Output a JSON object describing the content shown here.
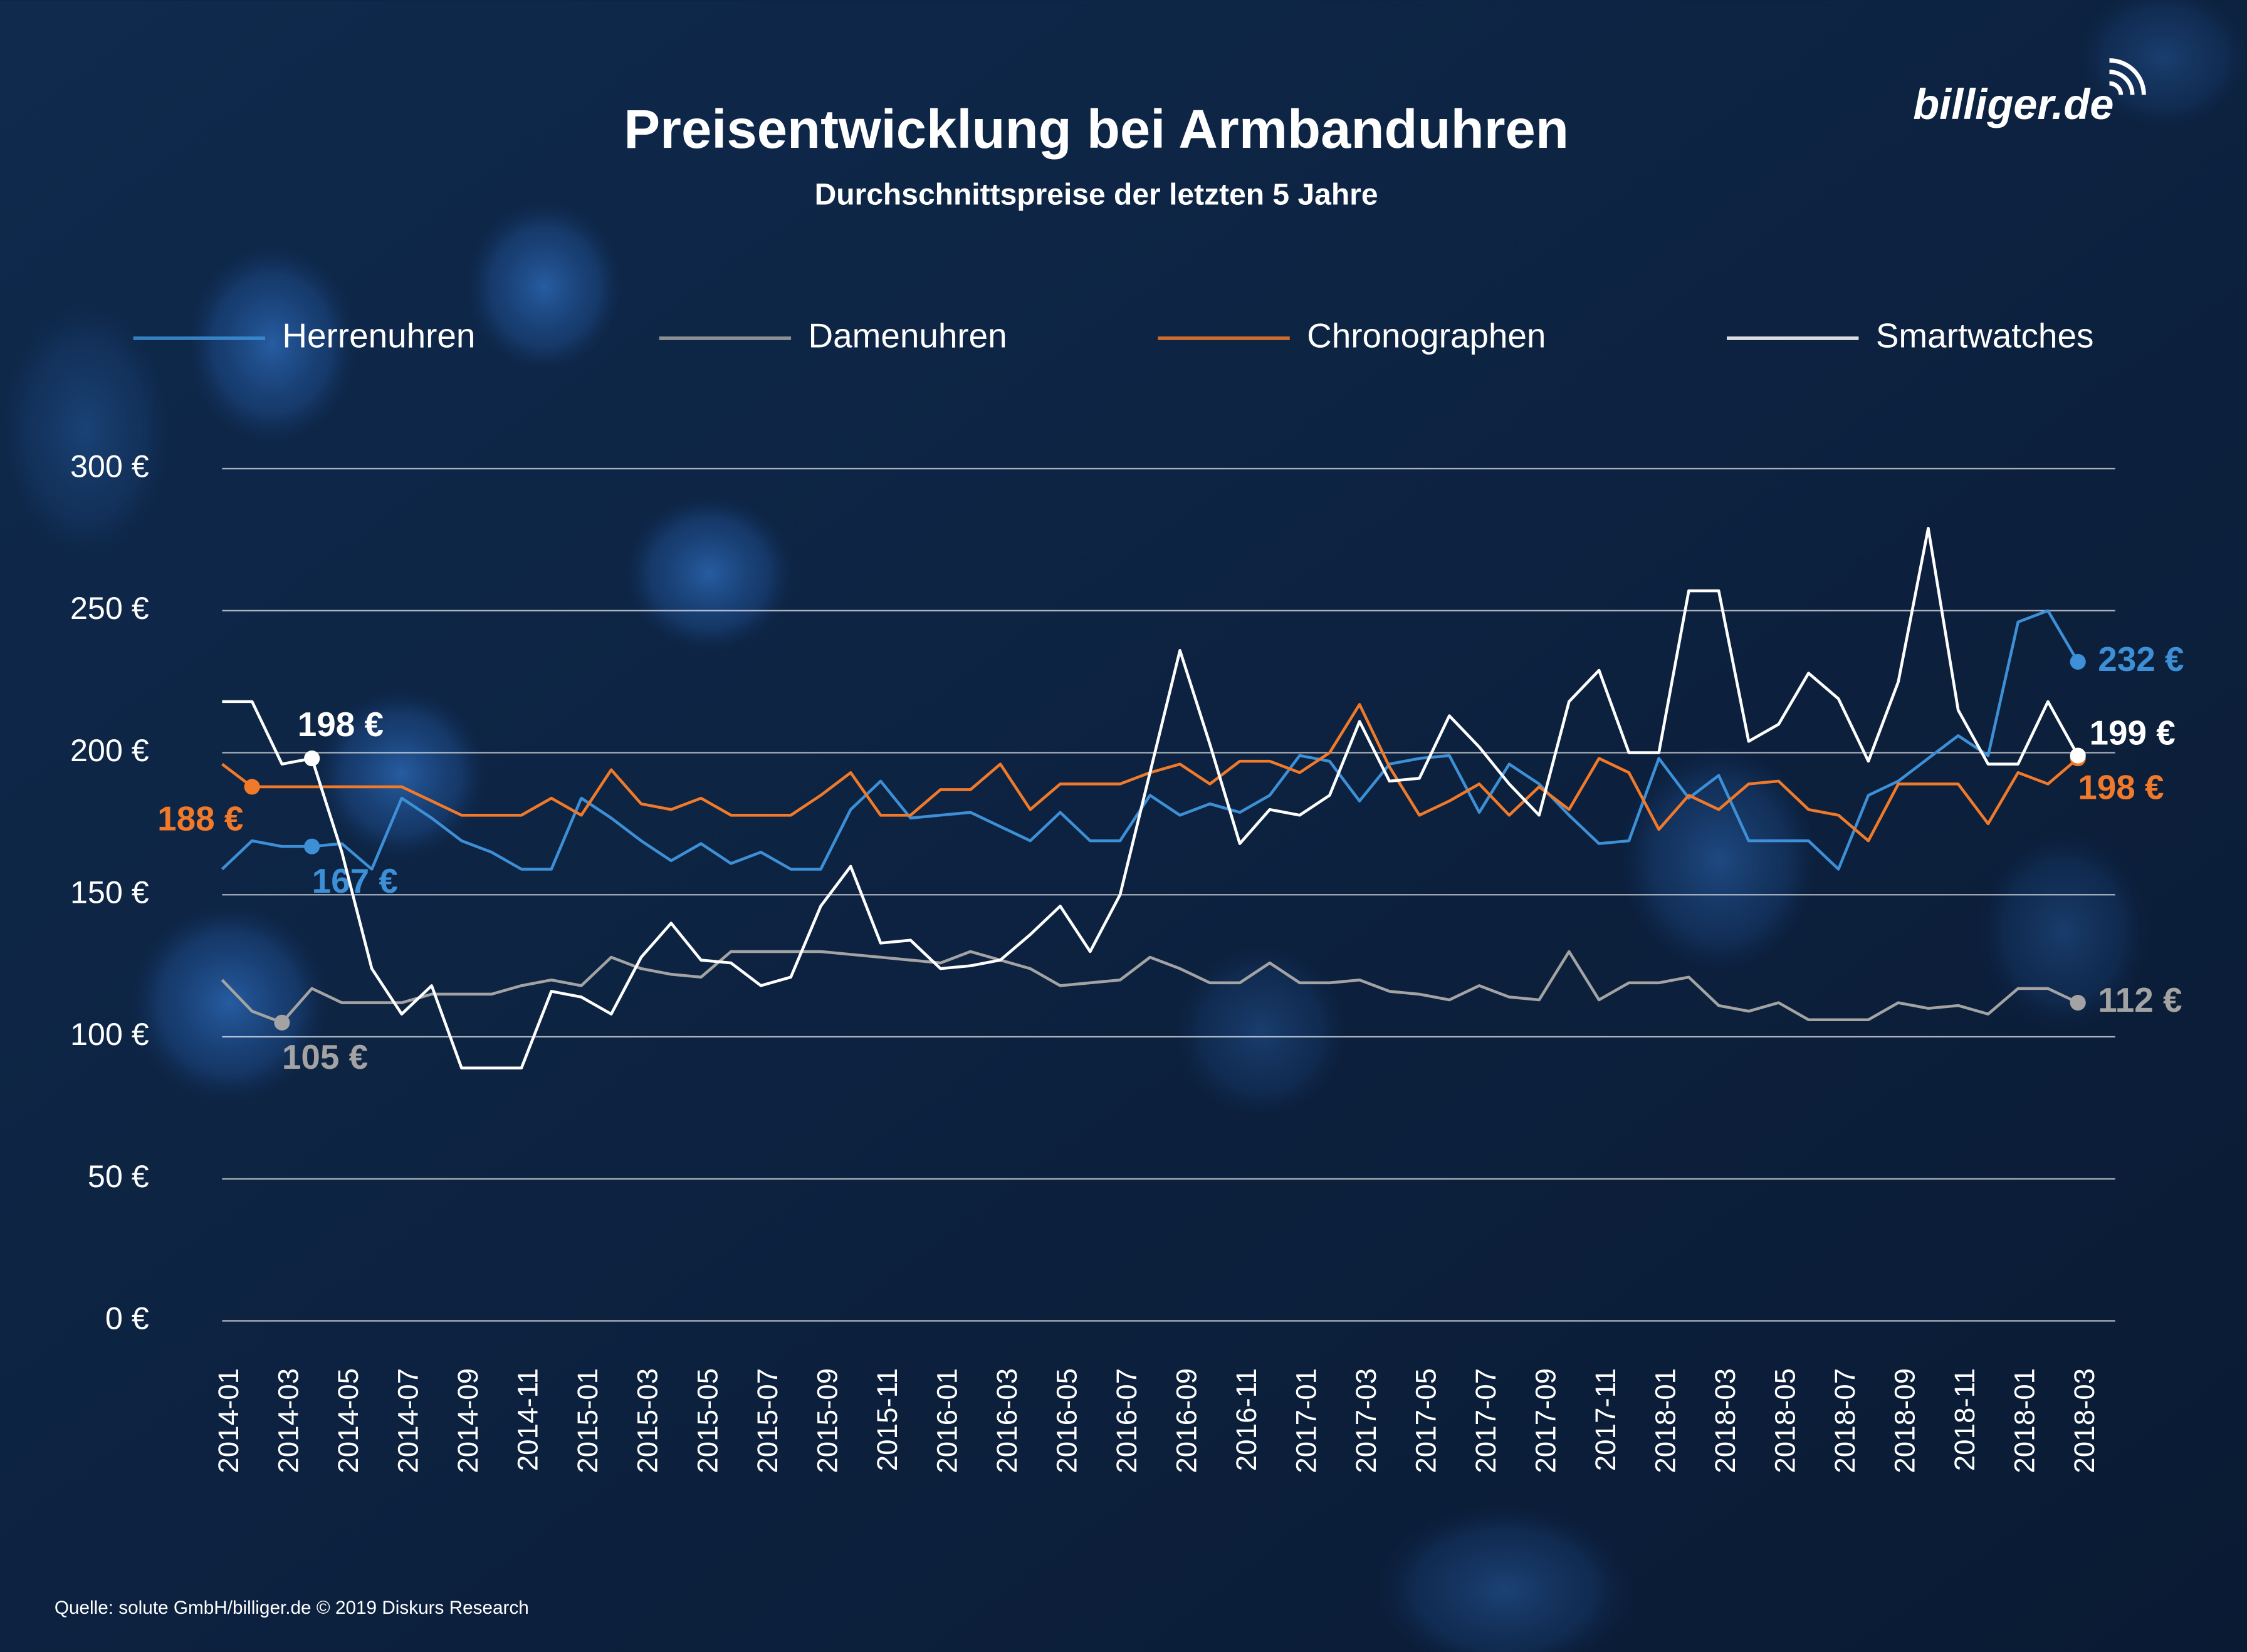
{
  "chart_data": {
    "type": "line",
    "title": "Preisentwicklung bei Armbanduhren",
    "subtitle": "Durchschnittspreise der letzten 5 Jahre",
    "source": "Quelle: solute GmbH/billiger.de © 2019 Diskurs Research",
    "logo": "billiger.de",
    "categories": [
      "2014-01",
      null,
      "2014-03",
      null,
      "2014-05",
      null,
      "2014-07",
      null,
      "2014-09",
      null,
      "2014-11",
      null,
      "2015-01",
      null,
      "2015-03",
      null,
      "2015-05",
      null,
      "2015-07",
      null,
      "2015-09",
      null,
      "2015-11",
      null,
      "2016-01",
      null,
      "2016-03",
      null,
      "2016-05",
      null,
      "2016-07",
      null,
      "2016-09",
      null,
      "2016-11",
      null,
      "2017-01",
      null,
      "2017-03",
      null,
      "2017-05",
      null,
      "2017-07",
      null,
      "2017-09",
      null,
      "2017-11",
      null,
      "2018-01",
      null,
      "2018-03",
      null,
      "2018-05",
      null,
      "2018-07",
      null,
      "2018-09",
      null,
      "2018-11",
      null,
      "2018-01",
      null,
      "2018-03"
    ],
    "ylim": [
      0,
      300
    ],
    "yticks": [
      {
        "value": 0,
        "label": "0 €"
      },
      {
        "value": 50,
        "label": "50 €"
      },
      {
        "value": 100,
        "label": "100 €"
      },
      {
        "value": 150,
        "label": "150 €"
      },
      {
        "value": 200,
        "label": "200 €"
      },
      {
        "value": 250,
        "label": "250 €"
      },
      {
        "value": 300,
        "label": "300 €"
      }
    ],
    "grid": true,
    "legend": "top",
    "series": [
      {
        "name": "Herrenuhren",
        "color": "#3d8fd6",
        "values": [
          159,
          169,
          167,
          167,
          168,
          159,
          184,
          177,
          169,
          165,
          159,
          159,
          184,
          177,
          169,
          162,
          168,
          161,
          165,
          159,
          159,
          180,
          190,
          177,
          178,
          179,
          174,
          169,
          179,
          169,
          169,
          185,
          178,
          182,
          179,
          185,
          199,
          197,
          183,
          196,
          198,
          199,
          179,
          196,
          189,
          178,
          168,
          169,
          198,
          184,
          192,
          169,
          169,
          169,
          159,
          185,
          190,
          198,
          206,
          199,
          246,
          250,
          232
        ],
        "value_labels": [
          null,
          null,
          null,
          "167 €",
          null,
          null,
          null,
          null,
          null,
          null,
          null,
          null,
          null,
          null,
          null,
          null,
          null,
          null,
          null,
          null,
          null,
          null,
          null,
          null,
          null,
          null,
          null,
          null,
          null,
          null,
          null,
          null,
          null,
          null,
          null,
          null,
          null,
          null,
          null,
          null,
          null,
          null,
          null,
          null,
          null,
          null,
          null,
          null,
          null,
          null,
          null,
          null,
          null,
          null,
          null,
          null,
          null,
          null,
          null,
          null,
          null,
          null,
          "232 €"
        ]
      },
      {
        "name": "Damenuhren",
        "color": "#a3a3a3",
        "values": [
          120,
          109,
          105,
          117,
          112,
          112,
          112,
          115,
          115,
          115,
          118,
          120,
          118,
          128,
          124,
          122,
          121,
          130,
          130,
          130,
          130,
          129,
          128,
          127,
          126,
          130,
          127,
          124,
          118,
          119,
          120,
          128,
          124,
          119,
          119,
          126,
          119,
          119,
          120,
          116,
          115,
          113,
          118,
          114,
          113,
          130,
          113,
          119,
          119,
          121,
          111,
          109,
          112,
          106,
          106,
          106,
          112,
          110,
          111,
          108,
          117,
          117,
          112
        ],
        "value_labels": [
          null,
          null,
          "105 €",
          null,
          null,
          null,
          null,
          null,
          null,
          null,
          null,
          null,
          null,
          null,
          null,
          null,
          null,
          null,
          null,
          null,
          null,
          null,
          null,
          null,
          null,
          null,
          null,
          null,
          null,
          null,
          null,
          null,
          null,
          null,
          null,
          null,
          null,
          null,
          null,
          null,
          null,
          null,
          null,
          null,
          null,
          null,
          null,
          null,
          null,
          null,
          null,
          null,
          null,
          null,
          null,
          null,
          null,
          null,
          null,
          null,
          null,
          null,
          "112 €"
        ]
      },
      {
        "name": "Chronographen",
        "color": "#f07a2a",
        "values": [
          196,
          188,
          188,
          188,
          188,
          188,
          188,
          183,
          178,
          178,
          178,
          184,
          178,
          194,
          182,
          180,
          184,
          178,
          178,
          178,
          185,
          193,
          178,
          178,
          187,
          187,
          196,
          180,
          189,
          189,
          189,
          193,
          196,
          189,
          197,
          197,
          193,
          200,
          217,
          195,
          178,
          183,
          189,
          178,
          188,
          180,
          198,
          193,
          173,
          185,
          180,
          189,
          190,
          180,
          178,
          169,
          189,
          189,
          189,
          175,
          193,
          189,
          198
        ],
        "value_labels": [
          null,
          "188 €",
          null,
          null,
          null,
          null,
          null,
          null,
          null,
          null,
          null,
          null,
          null,
          null,
          null,
          null,
          null,
          null,
          null,
          null,
          null,
          null,
          null,
          null,
          null,
          null,
          null,
          null,
          null,
          null,
          null,
          null,
          null,
          null,
          null,
          null,
          null,
          null,
          null,
          null,
          null,
          null,
          null,
          null,
          null,
          null,
          null,
          null,
          null,
          null,
          null,
          null,
          null,
          null,
          null,
          null,
          null,
          null,
          null,
          null,
          null,
          null,
          "198 €"
        ]
      },
      {
        "name": "Smartwatches",
        "color": "#ffffff",
        "values": [
          218,
          218,
          196,
          198,
          165,
          124,
          108,
          118,
          89,
          89,
          89,
          116,
          114,
          108,
          128,
          140,
          127,
          126,
          118,
          121,
          146,
          160,
          133,
          134,
          124,
          125,
          127,
          136,
          146,
          130,
          150,
          193,
          236,
          203,
          168,
          180,
          178,
          185,
          211,
          190,
          191,
          213,
          202,
          189,
          178,
          218,
          229,
          200,
          200,
          257,
          257,
          204,
          210,
          228,
          219,
          197,
          225,
          279,
          215,
          196,
          196,
          218,
          199
        ],
        "value_labels": [
          null,
          null,
          null,
          "198 €",
          null,
          null,
          null,
          null,
          null,
          null,
          null,
          null,
          null,
          null,
          null,
          null,
          null,
          null,
          null,
          null,
          null,
          null,
          null,
          null,
          null,
          null,
          null,
          null,
          null,
          null,
          null,
          null,
          null,
          null,
          null,
          null,
          null,
          null,
          null,
          null,
          null,
          null,
          null,
          null,
          null,
          null,
          null,
          null,
          null,
          null,
          null,
          null,
          null,
          null,
          null,
          null,
          null,
          null,
          null,
          null,
          null,
          null,
          "199 €"
        ]
      }
    ]
  }
}
